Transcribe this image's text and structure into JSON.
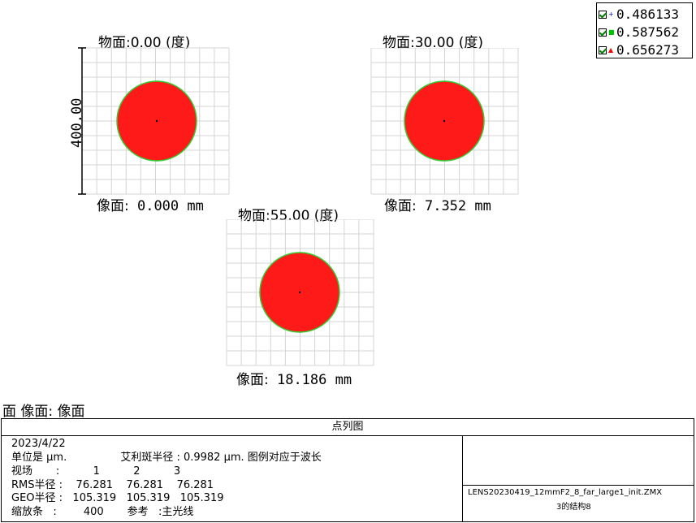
{
  "fields": [
    {
      "title": "物面:0.00 (度)",
      "image_prefix": "像面:",
      "image_value": " 0.000 mm"
    },
    {
      "title": "物面:30.00 (度)",
      "image_prefix": "像面:",
      "image_value": " 7.352 mm"
    },
    {
      "title": "物面:55.00 (度)",
      "image_prefix": "像面:",
      "image_value": " 18.186 mm"
    }
  ],
  "scale_bar_label": "400.00",
  "legend": [
    {
      "value": "0.486133",
      "color": "#0000ff"
    },
    {
      "value": "0.587562",
      "color": "#00c000"
    },
    {
      "value": "0.656273",
      "color": "#ff0000"
    }
  ],
  "colors": {
    "spot_fill": "#ff1a1a",
    "spot_edge": "#33cc33",
    "grid": "#d4d4d4"
  },
  "surface_label": "面 像面: 像面",
  "info": {
    "title": "点列图",
    "date": "2023/4/22",
    "units_line": "单位是 µm.                艾利斑半径 : 0.9982 µm. 图例对应于波长",
    "field_line": "视场       :          1          2          3",
    "rms_line": "RMS半径 :    76.281    76.281    76.281",
    "geo_line": "GEO半径 :   105.319   105.319   105.319",
    "scale_line": "缩放条   :        400       参考   :主光线",
    "file_name": "LENS20230419_12mmF2_8_far_large1_init.ZMX",
    "config": "3的结构8"
  }
}
